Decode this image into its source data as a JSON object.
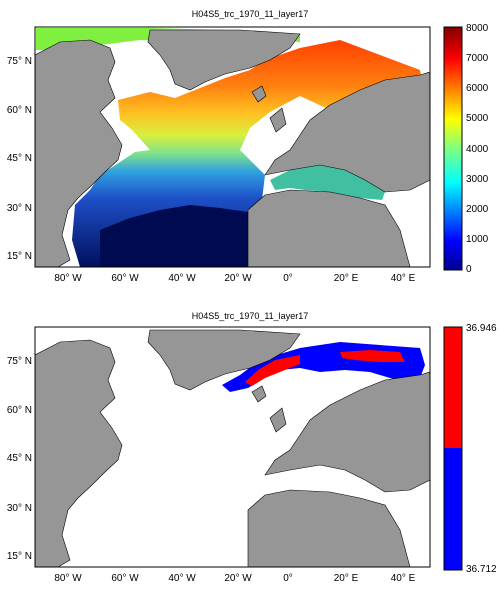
{
  "panels": [
    {
      "title": "H04S5_trc_1970_11_layer17",
      "y_ticks": [
        "75° N",
        "60° N",
        "45° N",
        "30° N",
        "15° N"
      ],
      "x_ticks": [
        "80° W",
        "60° W",
        "40° W",
        "20° W",
        "0°",
        "20° E",
        "40° E"
      ],
      "colorbar": {
        "type": "continuous",
        "ticks": [
          "8000",
          "7000",
          "6000",
          "5000",
          "4000",
          "3000",
          "2000",
          "1000",
          "0"
        ],
        "colormap": "jet"
      }
    },
    {
      "title": "H04S5_trc_1970_11_layer17",
      "y_ticks": [
        "75° N",
        "60° N",
        "45° N",
        "30° N",
        "15° N"
      ],
      "x_ticks": [
        "80° W",
        "60° W",
        "40° W",
        "20° W",
        "0°",
        "20° E",
        "40° E"
      ],
      "colorbar": {
        "type": "two-class",
        "ticks": [
          "36.946",
          "36.712"
        ],
        "colors": [
          "#ff0000",
          "#0000ff"
        ]
      }
    }
  ],
  "colors": {
    "land": "#969696",
    "ocean_nodata": "#ffffff"
  }
}
